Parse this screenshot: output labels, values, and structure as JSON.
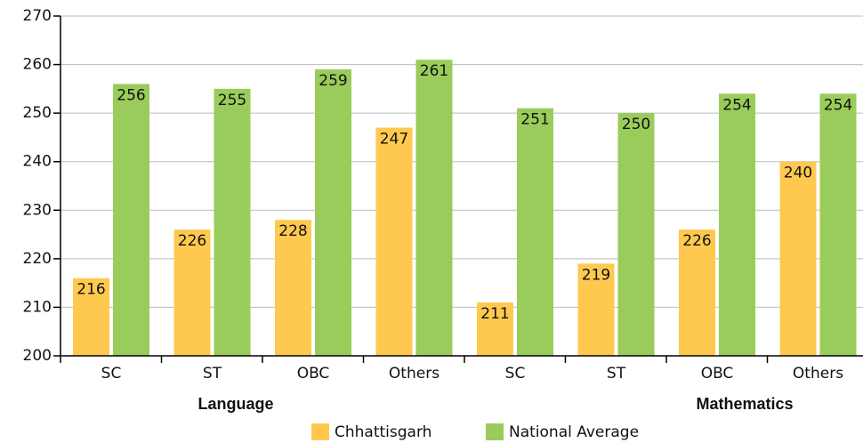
{
  "chart_data": {
    "type": "bar",
    "categories": [
      "SC",
      "ST",
      "OBC",
      "Others",
      "SC",
      "ST",
      "OBC",
      "Others"
    ],
    "group_labels": [
      "Language",
      "Mathematics"
    ],
    "series": [
      {
        "name": "Chhattisgarh",
        "color": "#ffc94f",
        "values": [
          216,
          226,
          228,
          247,
          211,
          219,
          226,
          240
        ]
      },
      {
        "name": "National Average",
        "color": "#99cc5a",
        "values": [
          256,
          255,
          259,
          261,
          251,
          250,
          254,
          254
        ]
      }
    ],
    "ylim": [
      200,
      270
    ],
    "yticks": [
      200,
      210,
      220,
      230,
      240,
      250,
      260,
      270
    ],
    "grid": true,
    "legend": "bottom"
  }
}
